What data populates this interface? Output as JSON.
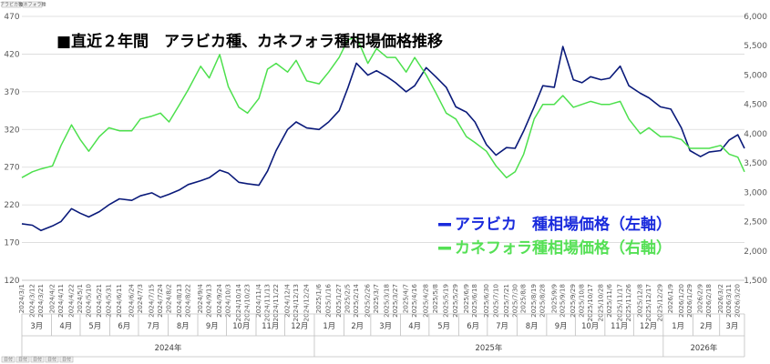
{
  "chart_data": {
    "type": "line",
    "title": "■直近２年間　アラビカ種、カネフォラ種相場価格推移",
    "xlabel": "",
    "ylabel": "",
    "grid": true,
    "legend_position": "bottom-right",
    "left_axis": {
      "min": 120,
      "max": 470,
      "ticks": [
        120,
        170,
        220,
        270,
        320,
        370,
        420,
        470
      ]
    },
    "right_axis": {
      "min": 1500,
      "max": 6000,
      "ticks": [
        "1,500",
        "2,000",
        "2,500",
        "3,000",
        "3,500",
        "4,000",
        "4,500",
        "5,000",
        "5,500",
        "6,000"
      ],
      "tick_values": [
        1500,
        2000,
        2500,
        3000,
        3500,
        4000,
        4500,
        5000,
        5500,
        6000
      ]
    },
    "x_start": "2024/3/1",
    "x_end": "2026/3/27",
    "x_tick_labels": [
      "2024/3/1",
      "2024/3/12",
      "2024/3/21",
      "2024/4/2",
      "2024/4/11",
      "2024/4/22",
      "2024/5/1",
      "2024/5/10",
      "2024/5/21",
      "2024/5/31",
      "2024/6/11",
      "2024/6/24",
      "2024/7/3",
      "2024/7/15",
      "2024/7/24",
      "2024/8/2",
      "2024/8/13",
      "2024/8/22",
      "2024/9/4",
      "2024/9/13",
      "2024/9/24",
      "2024/10/3",
      "2024/10/14",
      "2024/10/23",
      "2024/11/4",
      "2024/11/13",
      "2024/11/22",
      "2024/12/4",
      "2024/12/13",
      "2024/12/24",
      "2025/1/6",
      "2025/1/16",
      "2025/1/27",
      "2025/2/5",
      "2025/2/14",
      "2025/2/26",
      "2025/3/7",
      "2025/3/18",
      "2025/3/27",
      "2025/4/7",
      "2025/4/16",
      "2025/4/28",
      "2025/5/8",
      "2025/5/19",
      "2025/5/29",
      "2025/6/9",
      "2025/6/18",
      "2025/6/30",
      "2025/7/10",
      "2025/7/21",
      "2025/7/30",
      "2025/8/8",
      "2025/8/19",
      "2025/8/28",
      "2025/9/9",
      "2025/9/18",
      "2025/9/29",
      "2025/10/8",
      "2025/10/17",
      "2025/10/28",
      "2025/11/6",
      "2025/11/17",
      "2025/11/26",
      "2025/12/8",
      "2025/12/17",
      "2025/12/29",
      "2026/1/9",
      "2026/1/20",
      "2026/1/29",
      "2026/2/9",
      "2026/2/18",
      "2026/3/2",
      "2026/3/11",
      "2026/3/20"
    ],
    "month_labels": [
      "3月",
      "4月",
      "5月",
      "6月",
      "7月",
      "8月",
      "9月",
      "10月",
      "11月",
      "12月",
      "1月",
      "2月",
      "3月",
      "4月",
      "5月",
      "6月",
      "7月",
      "8月",
      "9月",
      "10月",
      "11月",
      "12月",
      "1月",
      "2月",
      "3月"
    ],
    "year_labels": [
      "2024年",
      "2025年",
      "2026年"
    ],
    "series": [
      {
        "name": "アラビカ　種相場価格（左軸）",
        "axis": "left",
        "color": "#0a1a7a",
        "points": [
          [
            "2024/3/1",
            195
          ],
          [
            "2024/3/12",
            193
          ],
          [
            "2024/3/21",
            186
          ],
          [
            "2024/4/2",
            192
          ],
          [
            "2024/4/11",
            198
          ],
          [
            "2024/4/22",
            215
          ],
          [
            "2024/5/1",
            209
          ],
          [
            "2024/5/10",
            204
          ],
          [
            "2024/5/21",
            211
          ],
          [
            "2024/5/31",
            220
          ],
          [
            "2024/6/11",
            228
          ],
          [
            "2024/6/24",
            226
          ],
          [
            "2024/7/3",
            232
          ],
          [
            "2024/7/15",
            236
          ],
          [
            "2024/7/24",
            230
          ],
          [
            "2024/8/2",
            234
          ],
          [
            "2024/8/13",
            240
          ],
          [
            "2024/8/22",
            247
          ],
          [
            "2024/9/4",
            252
          ],
          [
            "2024/9/13",
            256
          ],
          [
            "2024/9/24",
            266
          ],
          [
            "2024/10/3",
            262
          ],
          [
            "2024/10/14",
            250
          ],
          [
            "2024/10/23",
            248
          ],
          [
            "2024/11/4",
            246
          ],
          [
            "2024/11/13",
            265
          ],
          [
            "2024/11/22",
            292
          ],
          [
            "2024/12/4",
            320
          ],
          [
            "2024/12/13",
            330
          ],
          [
            "2024/12/24",
            322
          ],
          [
            "2025/1/6",
            320
          ],
          [
            "2025/1/16",
            330
          ],
          [
            "2025/1/27",
            345
          ],
          [
            "2025/2/5",
            375
          ],
          [
            "2025/2/14",
            408
          ],
          [
            "2025/2/26",
            392
          ],
          [
            "2025/3/7",
            398
          ],
          [
            "2025/3/18",
            390
          ],
          [
            "2025/3/27",
            382
          ],
          [
            "2025/4/7",
            370
          ],
          [
            "2025/4/16",
            378
          ],
          [
            "2025/4/28",
            402
          ],
          [
            "2025/5/8",
            390
          ],
          [
            "2025/5/19",
            376
          ],
          [
            "2025/5/29",
            350
          ],
          [
            "2025/6/9",
            343
          ],
          [
            "2025/6/18",
            330
          ],
          [
            "2025/6/30",
            300
          ],
          [
            "2025/7/10",
            286
          ],
          [
            "2025/7/21",
            296
          ],
          [
            "2025/7/30",
            295
          ],
          [
            "2025/8/8",
            318
          ],
          [
            "2025/8/19",
            350
          ],
          [
            "2025/8/28",
            378
          ],
          [
            "2025/9/9",
            376
          ],
          [
            "2025/9/18",
            430
          ],
          [
            "2025/9/29",
            386
          ],
          [
            "2025/10/8",
            382
          ],
          [
            "2025/10/17",
            390
          ],
          [
            "2025/10/28",
            386
          ],
          [
            "2025/11/6",
            388
          ],
          [
            "2025/11/17",
            404
          ],
          [
            "2025/11/26",
            378
          ],
          [
            "2025/12/8",
            368
          ],
          [
            "2025/12/17",
            362
          ],
          [
            "2025/12/29",
            350
          ],
          [
            "2026/1/9",
            347
          ],
          [
            "2026/1/20",
            322
          ],
          [
            "2026/1/29",
            292
          ],
          [
            "2026/2/9",
            284
          ],
          [
            "2026/2/18",
            290
          ],
          [
            "2026/3/2",
            292
          ],
          [
            "2026/3/11",
            306
          ],
          [
            "2026/3/20",
            313
          ],
          [
            "2026/3/27",
            295
          ]
        ]
      },
      {
        "name": "カネフォラ種相場価格（右軸）",
        "axis": "right",
        "color": "#4de04d",
        "points": [
          [
            "2024/3/1",
            3250
          ],
          [
            "2024/3/12",
            3350
          ],
          [
            "2024/3/21",
            3400
          ],
          [
            "2024/4/2",
            3450
          ],
          [
            "2024/4/11",
            3800
          ],
          [
            "2024/4/22",
            4150
          ],
          [
            "2024/5/1",
            3900
          ],
          [
            "2024/5/10",
            3700
          ],
          [
            "2024/5/21",
            3950
          ],
          [
            "2024/5/31",
            4100
          ],
          [
            "2024/6/11",
            4050
          ],
          [
            "2024/6/24",
            4050
          ],
          [
            "2024/7/3",
            4250
          ],
          [
            "2024/7/15",
            4300
          ],
          [
            "2024/7/24",
            4350
          ],
          [
            "2024/8/2",
            4200
          ],
          [
            "2024/8/13",
            4500
          ],
          [
            "2024/8/22",
            4750
          ],
          [
            "2024/9/4",
            5150
          ],
          [
            "2024/9/13",
            4950
          ],
          [
            "2024/9/24",
            5350
          ],
          [
            "2024/10/3",
            4800
          ],
          [
            "2024/10/14",
            4450
          ],
          [
            "2024/10/23",
            4350
          ],
          [
            "2024/11/4",
            4600
          ],
          [
            "2024/11/13",
            5100
          ],
          [
            "2024/11/22",
            5200
          ],
          [
            "2024/12/4",
            5050
          ],
          [
            "2024/12/13",
            5250
          ],
          [
            "2024/12/24",
            4900
          ],
          [
            "2025/1/6",
            4850
          ],
          [
            "2025/1/16",
            5050
          ],
          [
            "2025/1/27",
            5300
          ],
          [
            "2025/2/5",
            5600
          ],
          [
            "2025/2/14",
            5650
          ],
          [
            "2025/2/26",
            5200
          ],
          [
            "2025/3/7",
            5450
          ],
          [
            "2025/3/18",
            5300
          ],
          [
            "2025/3/27",
            5300
          ],
          [
            "2025/4/7",
            5050
          ],
          [
            "2025/4/16",
            5300
          ],
          [
            "2025/4/28",
            5000
          ],
          [
            "2025/5/8",
            4700
          ],
          [
            "2025/5/19",
            4350
          ],
          [
            "2025/5/29",
            4250
          ],
          [
            "2025/6/9",
            3950
          ],
          [
            "2025/6/18",
            3850
          ],
          [
            "2025/6/30",
            3700
          ],
          [
            "2025/7/10",
            3450
          ],
          [
            "2025/7/21",
            3250
          ],
          [
            "2025/7/30",
            3350
          ],
          [
            "2025/8/8",
            3650
          ],
          [
            "2025/8/19",
            4250
          ],
          [
            "2025/8/28",
            4500
          ],
          [
            "2025/9/9",
            4500
          ],
          [
            "2025/9/18",
            4650
          ],
          [
            "2025/9/29",
            4450
          ],
          [
            "2025/10/8",
            4500
          ],
          [
            "2025/10/17",
            4550
          ],
          [
            "2025/10/28",
            4500
          ],
          [
            "2025/11/6",
            4500
          ],
          [
            "2025/11/17",
            4550
          ],
          [
            "2025/11/26",
            4250
          ],
          [
            "2025/12/8",
            4000
          ],
          [
            "2025/12/17",
            4100
          ],
          [
            "2025/12/29",
            3950
          ],
          [
            "2026/1/9",
            3950
          ],
          [
            "2026/1/20",
            3900
          ],
          [
            "2026/1/29",
            3750
          ],
          [
            "2026/2/9",
            3750
          ],
          [
            "2026/2/18",
            3750
          ],
          [
            "2026/3/2",
            3800
          ],
          [
            "2026/3/11",
            3650
          ],
          [
            "2026/3/20",
            3600
          ],
          [
            "2026/3/27",
            3350
          ]
        ]
      }
    ],
    "legend_colors": [
      "#1a2bdc",
      "#55e055"
    ]
  },
  "controls": {
    "top_buttons": [
      "アラビカ種",
      "カネフォラ種"
    ],
    "bottom_buttons": [
      "日付",
      "日付",
      "日付",
      "日付",
      "日付"
    ]
  }
}
